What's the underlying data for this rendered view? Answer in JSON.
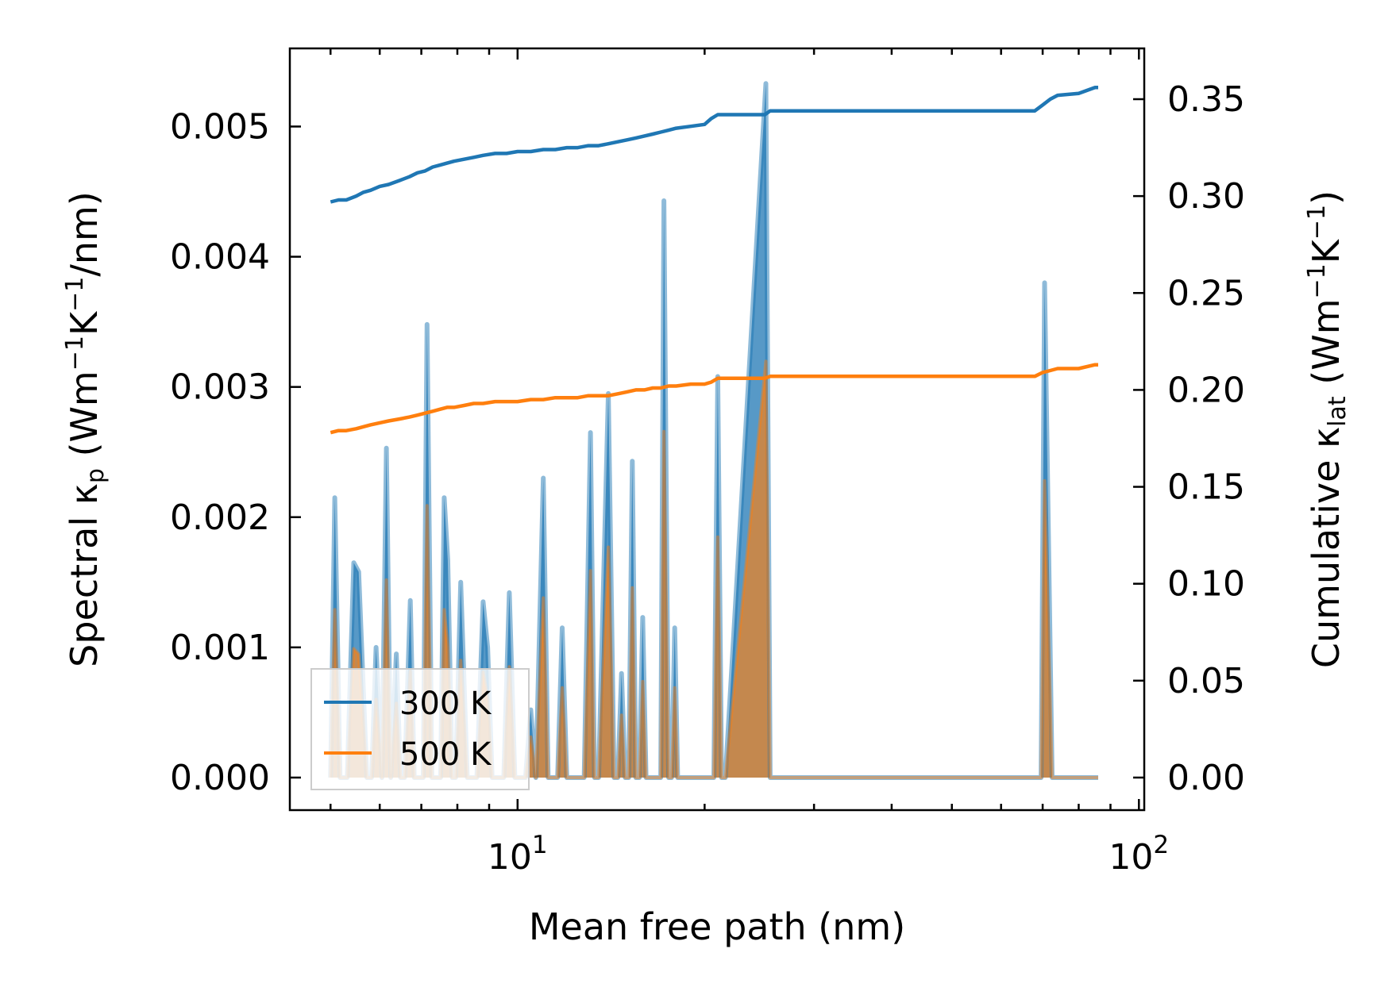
{
  "chart_data": {
    "type": "line",
    "xscale": "log",
    "xlabel": "Mean free path (nm)",
    "ylabel_left": {
      "pre": "Spectral κ",
      "sub": "p",
      "post": " (Wm",
      "sup1": "−1",
      "mid": "K",
      "sup2": "−1",
      "end": "/nm)"
    },
    "ylabel_right": {
      "pre": "Cumulative κ",
      "sub": "lat",
      "post": " (Wm",
      "sup1": "−1",
      "mid": "K",
      "sup2": "−1",
      "end": ")"
    },
    "xlim": [
      4.3,
      102
    ],
    "ylim_left": [
      -0.00025,
      0.0056
    ],
    "ylim_right": [
      -0.0168,
      0.3762
    ],
    "x_tick_labels": [
      {
        "value": 10,
        "base": "10",
        "exp": "1"
      },
      {
        "value": 100,
        "base": "10",
        "exp": "2"
      }
    ],
    "y_left_ticks": [
      0.0,
      0.001,
      0.002,
      0.003,
      0.004,
      0.005
    ],
    "y_left_tick_labels": [
      "0.000",
      "0.001",
      "0.002",
      "0.003",
      "0.004",
      "0.005"
    ],
    "y_right_ticks": [
      0.0,
      0.05,
      0.1,
      0.15,
      0.2,
      0.25,
      0.3,
      0.35
    ],
    "y_right_tick_labels": [
      "0.00",
      "0.05",
      "0.10",
      "0.15",
      "0.20",
      "0.25",
      "0.30",
      "0.35"
    ],
    "legend": {
      "position": "lower-left",
      "entries": [
        "300 K",
        "500 K"
      ]
    },
    "colors": {
      "300K": "#1f77b4",
      "500K": "#ff7f0e"
    },
    "spectral_series": [
      {
        "name": "300 K",
        "axis": "left",
        "x": [
          5.0,
          5.08,
          5.18,
          5.32,
          5.45,
          5.55,
          5.72,
          5.82,
          5.92,
          6.05,
          6.15,
          6.25,
          6.38,
          6.48,
          6.58,
          6.72,
          6.82,
          6.92,
          7.05,
          7.15,
          7.28,
          7.42,
          7.52,
          7.62,
          7.72,
          7.85,
          7.95,
          8.1,
          8.3,
          8.45,
          8.6,
          8.8,
          8.95,
          9.1,
          9.3,
          9.5,
          9.7,
          9.9,
          10.1,
          10.3,
          10.5,
          10.7,
          11.0,
          11.2,
          11.4,
          11.6,
          11.8,
          12.0,
          12.2,
          12.8,
          13.1,
          13.3,
          13.5,
          14.0,
          14.3,
          14.5,
          14.7,
          14.9,
          15.1,
          15.3,
          15.5,
          15.7,
          15.9,
          16.1,
          16.3,
          16.5,
          16.8,
          17.0,
          17.2,
          17.5,
          17.7,
          17.9,
          18.1,
          18.3,
          20.0,
          20.7,
          21.0,
          21.3,
          21.6,
          25.1,
          25.5,
          25.9,
          68.0,
          68.8,
          69.6,
          70.5,
          72.5,
          73.5,
          74.5,
          84.0,
          85.0,
          86.0
        ],
        "y": [
          0.0,
          0.00215,
          0.0,
          0.0,
          0.00165,
          0.00158,
          0.0,
          0.0,
          0.001,
          0.0,
          0.00253,
          0.0,
          0.00095,
          0.0,
          0.0,
          0.00136,
          0.0,
          0.0,
          0.0,
          0.00348,
          0.0,
          0.0,
          0.0,
          0.00215,
          0.00167,
          0.0,
          0.0,
          0.0015,
          0.0,
          0.0,
          0.0,
          0.00135,
          0.001,
          0.0,
          0.0,
          0.0,
          0.00142,
          0.0,
          0.0,
          0.0,
          0.00052,
          0.0,
          0.0023,
          0.0,
          0.0,
          0.0,
          0.00115,
          0.0,
          0.0,
          0.0,
          0.00265,
          0.0,
          0.0,
          0.00295,
          0.0,
          0.0,
          0.0008,
          0.0,
          0.0,
          0.00243,
          0.0,
          0.0,
          0.00123,
          0.0,
          0.0,
          0.0,
          0.0,
          0.0,
          0.00443,
          0.0,
          0.0,
          0.00115,
          0.0,
          0.0,
          0.0,
          0.0,
          0.00308,
          0.0,
          0.0,
          0.00533,
          0.0,
          0.0,
          0.0,
          0.0,
          0.0,
          0.0038,
          0.0,
          0.0,
          0.0,
          0.0,
          0.0,
          0.0
        ],
        "scale_500K": 0.6
      }
    ],
    "cumulative_series": [
      {
        "name": "300 K",
        "axis": "right",
        "x": [
          5.0,
          5.15,
          5.3,
          5.5,
          5.65,
          5.8,
          6.0,
          6.2,
          6.45,
          6.7,
          6.9,
          7.1,
          7.3,
          7.5,
          7.7,
          7.9,
          8.2,
          8.5,
          8.8,
          9.2,
          9.6,
          10.0,
          10.5,
          11.0,
          11.5,
          12.0,
          12.5,
          13.0,
          13.5,
          14.0,
          14.5,
          15.0,
          15.5,
          16.0,
          16.5,
          17.0,
          17.5,
          18.0,
          19.0,
          20.0,
          20.5,
          21.0,
          23.0,
          25.0,
          25.5,
          30.0,
          40.0,
          55.0,
          68.0,
          70.0,
          72.0,
          74.0,
          80.0,
          85.0,
          86.0
        ],
        "y": [
          0.297,
          0.298,
          0.298,
          0.3,
          0.302,
          0.303,
          0.305,
          0.306,
          0.308,
          0.31,
          0.312,
          0.313,
          0.315,
          0.316,
          0.317,
          0.318,
          0.319,
          0.32,
          0.321,
          0.322,
          0.322,
          0.323,
          0.323,
          0.324,
          0.324,
          0.325,
          0.325,
          0.326,
          0.326,
          0.327,
          0.328,
          0.329,
          0.33,
          0.331,
          0.332,
          0.333,
          0.334,
          0.335,
          0.336,
          0.337,
          0.34,
          0.342,
          0.342,
          0.342,
          0.344,
          0.344,
          0.344,
          0.344,
          0.344,
          0.347,
          0.35,
          0.352,
          0.353,
          0.356,
          0.356
        ]
      },
      {
        "name": "500 K",
        "axis": "right",
        "x": [
          5.0,
          5.15,
          5.3,
          5.5,
          5.65,
          5.8,
          6.0,
          6.2,
          6.45,
          6.7,
          6.9,
          7.1,
          7.3,
          7.5,
          7.7,
          7.9,
          8.2,
          8.5,
          8.8,
          9.2,
          9.6,
          10.0,
          10.5,
          11.0,
          11.5,
          12.0,
          12.5,
          13.0,
          13.5,
          14.0,
          14.5,
          15.0,
          15.5,
          16.0,
          16.5,
          17.0,
          17.5,
          18.0,
          19.0,
          20.0,
          20.5,
          21.0,
          23.0,
          25.0,
          25.5,
          30.0,
          40.0,
          55.0,
          68.0,
          70.0,
          72.0,
          74.0,
          80.0,
          85.0,
          86.0
        ],
        "y": [
          0.178,
          0.179,
          0.179,
          0.18,
          0.181,
          0.182,
          0.183,
          0.184,
          0.185,
          0.186,
          0.187,
          0.188,
          0.189,
          0.19,
          0.191,
          0.191,
          0.192,
          0.193,
          0.193,
          0.194,
          0.194,
          0.194,
          0.195,
          0.195,
          0.196,
          0.196,
          0.196,
          0.197,
          0.197,
          0.197,
          0.198,
          0.199,
          0.2,
          0.2,
          0.201,
          0.201,
          0.202,
          0.202,
          0.203,
          0.203,
          0.204,
          0.206,
          0.206,
          0.206,
          0.207,
          0.207,
          0.207,
          0.207,
          0.207,
          0.209,
          0.21,
          0.211,
          0.211,
          0.213,
          0.213
        ]
      }
    ]
  }
}
